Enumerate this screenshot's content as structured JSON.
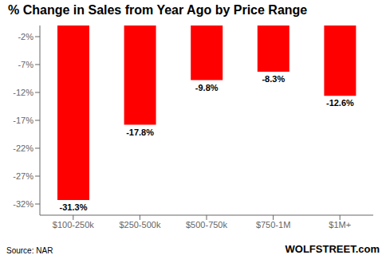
{
  "chart_data": {
    "type": "bar",
    "title": "% Change in Sales from Year Ago by Price Range",
    "categories": [
      "$100-250k",
      "$250-500k",
      "$500-750k",
      "$750-1M",
      "$1M+"
    ],
    "values": [
      -31.3,
      -17.8,
      -9.8,
      -8.3,
      -12.6
    ],
    "value_labels": [
      "-31.3%",
      "-17.8%",
      "-9.8%",
      "-8.3%",
      "-12.6%"
    ],
    "data_labels": true,
    "color": "#ff0000",
    "ylim": [
      -34,
      0
    ],
    "yticks": [
      {
        "value": -2,
        "label": "-2%"
      },
      {
        "value": -7,
        "label": "-7%"
      },
      {
        "value": -12,
        "label": "-12%"
      },
      {
        "value": -17,
        "label": "-17%"
      },
      {
        "value": -22,
        "label": "-22%"
      },
      {
        "value": -27,
        "label": "-27%"
      },
      {
        "value": -32,
        "label": "-32%"
      }
    ],
    "grid": false,
    "annotations": [
      "Source: NAR",
      "WOLFSTREET.com"
    ]
  }
}
